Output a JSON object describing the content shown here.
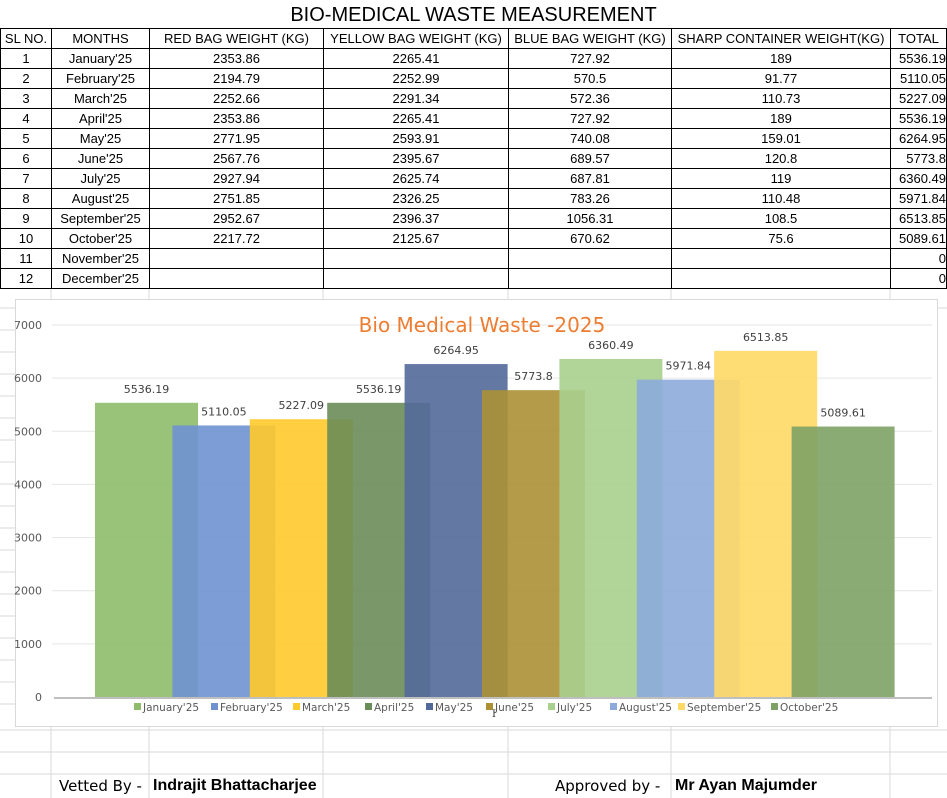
{
  "title": "BIO-MEDICAL WASTE MEASUREMENT",
  "table": {
    "headers": [
      "SL NO.",
      "MONTHS",
      "RED BAG WEIGHT (KG)",
      "YELLOW BAG WEIGHT (KG)",
      "BLUE BAG WEIGHT (KG)",
      "SHARP CONTAINER WEIGHT(KG)",
      "TOTAL"
    ],
    "rows": [
      [
        "1",
        "January'25",
        "2353.86",
        "2265.41",
        "727.92",
        "189",
        "5536.19"
      ],
      [
        "2",
        "February'25",
        "2194.79",
        "2252.99",
        "570.5",
        "91.77",
        "5110.05"
      ],
      [
        "3",
        "March'25",
        "2252.66",
        "2291.34",
        "572.36",
        "110.73",
        "5227.09"
      ],
      [
        "4",
        "April'25",
        "2353.86",
        "2265.41",
        "727.92",
        "189",
        "5536.19"
      ],
      [
        "5",
        "May'25",
        "2771.95",
        "2593.91",
        "740.08",
        "159.01",
        "6264.95"
      ],
      [
        "6",
        "June'25",
        "2567.76",
        "2395.67",
        "689.57",
        "120.8",
        "5773.8"
      ],
      [
        "7",
        "July'25",
        "2927.94",
        "2625.74",
        "687.81",
        "119",
        "6360.49"
      ],
      [
        "8",
        "August'25",
        "2751.85",
        "2326.25",
        "783.26",
        "110.48",
        "5971.84"
      ],
      [
        "9",
        "September'25",
        "2952.67",
        "2396.37",
        "1056.31",
        "108.5",
        "6513.85"
      ],
      [
        "10",
        "October'25",
        "2217.72",
        "2125.67",
        "670.62",
        "75.6",
        "5089.61"
      ],
      [
        "11",
        "November'25",
        "",
        "",
        "",
        "",
        "0"
      ],
      [
        "12",
        "December'25",
        "",
        "",
        "",
        "",
        "0"
      ]
    ]
  },
  "chart_data": {
    "type": "bar",
    "title": "Bio Medical Waste -2025",
    "xlabel": "",
    "ylabel": "",
    "ylim": [
      0,
      7000
    ],
    "yticks": [
      0,
      1000,
      2000,
      3000,
      4000,
      5000,
      6000,
      7000
    ],
    "grid": true,
    "legend_position": "bottom",
    "series": [
      {
        "name": "January'25",
        "value": 5536.19,
        "label": "5536.19",
        "color": "#8fbc6b"
      },
      {
        "name": "February'25",
        "value": 5110.05,
        "label": "5110.05",
        "color": "#6e92d0"
      },
      {
        "name": "March'25",
        "value": 5227.09,
        "label": "5227.09",
        "color": "#ffca2c"
      },
      {
        "name": "April'25",
        "value": 5536.19,
        "label": "5536.19",
        "color": "#6a8c58"
      },
      {
        "name": "May'25",
        "value": 6264.95,
        "label": "6264.95",
        "color": "#53699a"
      },
      {
        "name": "June'25",
        "value": 5773.8,
        "label": "5773.8",
        "color": "#ab9035"
      },
      {
        "name": "July'25",
        "value": 6360.49,
        "label": "6360.49",
        "color": "#a8d08e"
      },
      {
        "name": "August'25",
        "value": 5971.84,
        "label": "5971.84",
        "color": "#8cabda"
      },
      {
        "name": "September'25",
        "value": 6513.85,
        "label": "6513.85",
        "color": "#ffd966"
      },
      {
        "name": "October'25",
        "value": 5089.61,
        "label": "5089.61",
        "color": "#7ea265"
      }
    ],
    "title_color": "#ed7d31"
  },
  "footer": {
    "vetted_label": "Vetted By -",
    "vetted_name": "Indrajit Bhattacharjee",
    "approved_label": "Approved by -",
    "approved_name": "Mr Ayan Majumder"
  },
  "cursor_glyph": "I"
}
